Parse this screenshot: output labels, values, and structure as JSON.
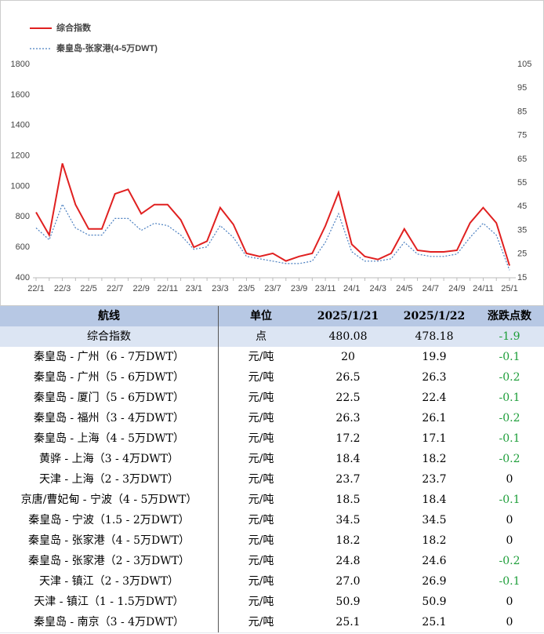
{
  "chart_data": {
    "type": "line",
    "categories": [
      "22/1",
      null,
      "22/3",
      null,
      "22/5",
      null,
      "22/7",
      null,
      "22/9",
      null,
      "22/11",
      null,
      "23/1",
      null,
      "23/3",
      null,
      "23/5",
      null,
      "23/7",
      null,
      "23/9",
      null,
      "23/11",
      null,
      "24/1",
      null,
      "24/3",
      null,
      "24/5",
      null,
      "24/7",
      null,
      "24/9",
      null,
      "24/11",
      null,
      "25/1"
    ],
    "series": [
      {
        "name": "综合指数",
        "color": "#e02020",
        "values": [
          830,
          680,
          1150,
          880,
          720,
          720,
          950,
          980,
          820,
          880,
          880,
          780,
          600,
          640,
          860,
          750,
          560,
          540,
          560,
          510,
          540,
          560,
          740,
          960,
          620,
          540,
          520,
          560,
          720,
          580,
          570,
          570,
          580,
          760,
          860,
          760,
          480
        ]
      },
      {
        "name": "秦皇岛-张家港(4-5万DWT)",
        "color": "#4a7fc0",
        "axis": "y2",
        "values": [
          36,
          31,
          46,
          36,
          33,
          33,
          40,
          40,
          35,
          38,
          37,
          33,
          27,
          28,
          37,
          32,
          24,
          23,
          22,
          21,
          21,
          22,
          30,
          42,
          26,
          22,
          22,
          23,
          30,
          25,
          24,
          24,
          25,
          32,
          38,
          33,
          18.2
        ]
      }
    ],
    "ylim": [
      400,
      1800
    ],
    "yticks": [
      400,
      600,
      800,
      1000,
      1200,
      1400,
      1600,
      1800
    ],
    "y2lim": [
      15,
      105
    ],
    "y2ticks": [
      15,
      25,
      35,
      45,
      55,
      65,
      75,
      85,
      95,
      105
    ],
    "legend": "top-left"
  },
  "table": {
    "header": [
      "航线",
      "单位",
      "2025/1/21",
      "2025/1/22",
      "涨跌点数"
    ],
    "rows": [
      [
        "综合指数",
        "点",
        "480.08",
        "478.18",
        "-1.9"
      ],
      [
        "秦皇岛 - 广州（6 - 7万DWT）",
        "元/吨",
        "20",
        "19.9",
        "-0.1"
      ],
      [
        "秦皇岛 - 广州（5 - 6万DWT）",
        "元/吨",
        "26.5",
        "26.3",
        "-0.2"
      ],
      [
        "秦皇岛 - 厦门（5 - 6万DWT）",
        "元/吨",
        "22.5",
        "22.4",
        "-0.1"
      ],
      [
        "秦皇岛 - 福州（3 - 4万DWT）",
        "元/吨",
        "26.3",
        "26.1",
        "-0.2"
      ],
      [
        "秦皇岛 - 上海（4 - 5万DWT）",
        "元/吨",
        "17.2",
        "17.1",
        "-0.1"
      ],
      [
        "黄骅 - 上海（3 - 4万DWT）",
        "元/吨",
        "18.4",
        "18.2",
        "-0.2"
      ],
      [
        "天津 - 上海（2 - 3万DWT）",
        "元/吨",
        "23.7",
        "23.7",
        "0"
      ],
      [
        "京唐/曹妃甸 - 宁波（4 - 5万DWT）",
        "元/吨",
        "18.5",
        "18.4",
        "-0.1"
      ],
      [
        "秦皇岛 - 宁波（1.5 - 2万DWT）",
        "元/吨",
        "34.5",
        "34.5",
        "0"
      ],
      [
        "秦皇岛 - 张家港（4 - 5万DWT）",
        "元/吨",
        "18.2",
        "18.2",
        "0"
      ],
      [
        "秦皇岛 - 张家港（2 - 3万DWT）",
        "元/吨",
        "24.8",
        "24.6",
        "-0.2"
      ],
      [
        "天津 - 镇江（2 - 3万DWT）",
        "元/吨",
        "27.0",
        "26.9",
        "-0.1"
      ],
      [
        "天津 - 镇江（1 - 1.5万DWT）",
        "元/吨",
        "50.9",
        "50.9",
        "0"
      ],
      [
        "秦皇岛 - 南京（3 - 4万DWT）",
        "元/吨",
        "25.1",
        "25.1",
        "0"
      ]
    ]
  }
}
